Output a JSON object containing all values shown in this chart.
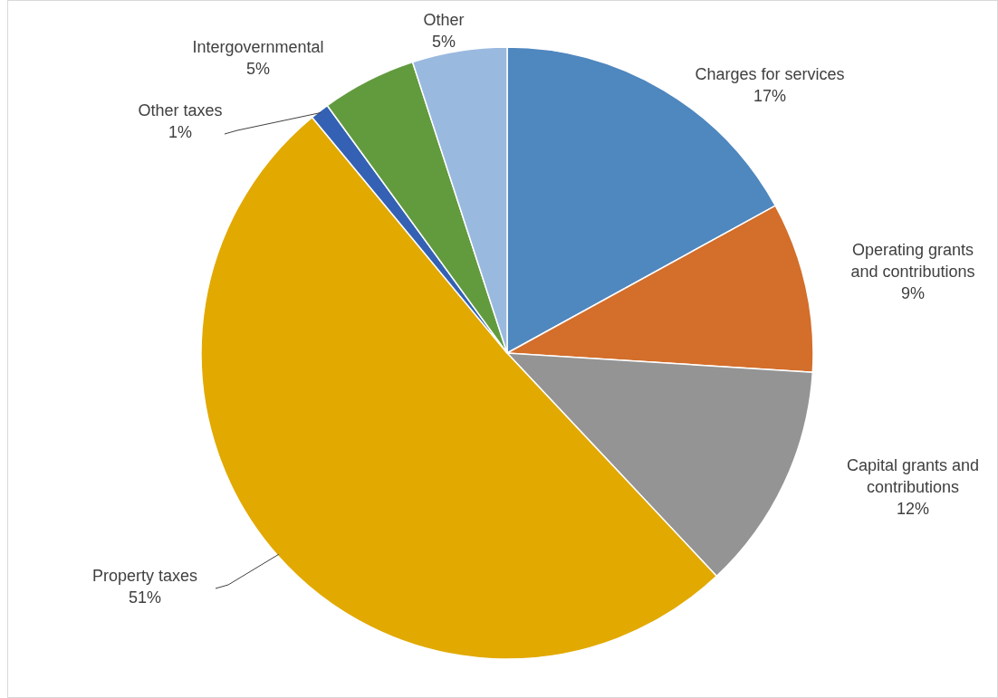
{
  "chart_data": {
    "type": "pie",
    "categories": [
      "Charges for services",
      "Operating grants and contributions",
      "Capital grants and contributions",
      "Property taxes",
      "Other taxes",
      "Intergovernmental",
      "Other"
    ],
    "values": [
      17,
      9,
      12,
      51,
      1,
      5,
      5
    ],
    "colors": [
      "#4f87bf",
      "#d36e2b",
      "#949494",
      "#e2a900",
      "#3461b3",
      "#629b3e",
      "#9ab9df"
    ],
    "value_labels": [
      "17%",
      "9%",
      "12%",
      "51%",
      "1%",
      "5%",
      "5%"
    ]
  }
}
